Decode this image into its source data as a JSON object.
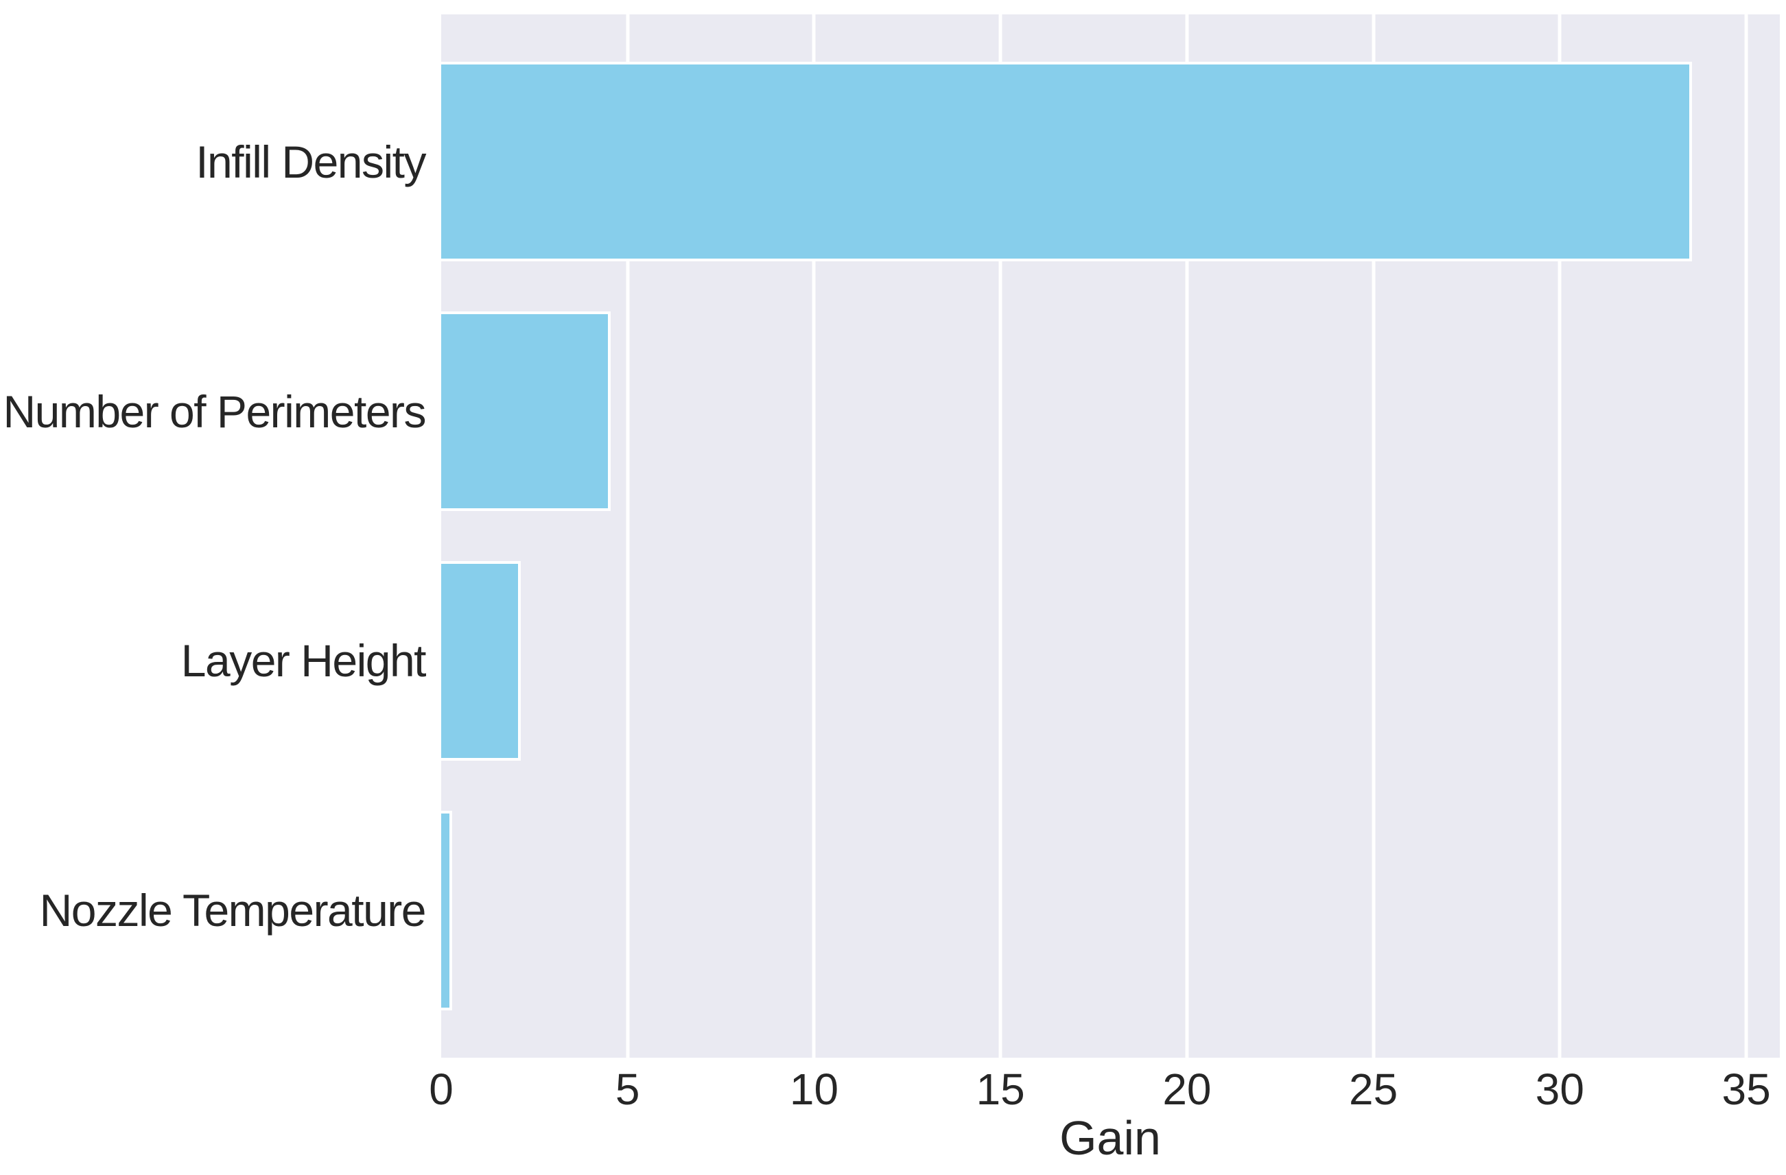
{
  "chart_data": {
    "type": "bar",
    "orientation": "horizontal",
    "title": "",
    "categories": [
      "Infill Density",
      "Number of Perimeters",
      "Layer Height",
      "Nozzle Temperature"
    ],
    "values": [
      33.5,
      4.5,
      2.1,
      0.25
    ],
    "xlabel": "Gain",
    "ylabel": "",
    "xlim": [
      0,
      35.9
    ],
    "xticks": [
      0,
      5,
      10,
      15,
      20,
      25,
      30,
      35
    ],
    "grid": "on",
    "legend": "none",
    "style": "seaborn-darkgrid",
    "colors": {
      "bar_fill": "#87ceeb",
      "bar_edge": "#ffffff",
      "plot_background": "#eaeaf2",
      "gridline": "#ffffff",
      "text": "#262626",
      "figure_background": "#ffffff"
    }
  }
}
